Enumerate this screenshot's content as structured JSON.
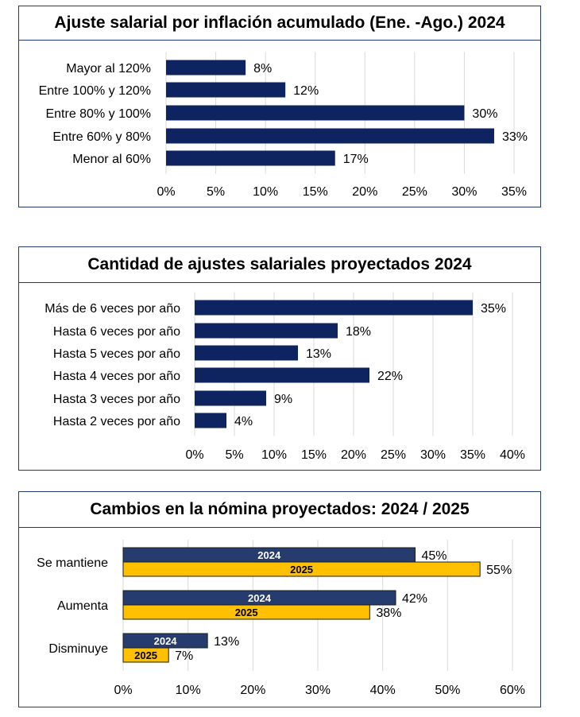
{
  "colors": {
    "navy": "#0d2461",
    "navy2": "#263c6e",
    "gold": "#ffc000",
    "grid": "#d9d9d9",
    "border": "#1f3a6b"
  },
  "chart_data": [
    {
      "type": "bar",
      "orientation": "horizontal",
      "title": "Ajuste salarial por inflación acumulado (Ene. -Ago.) 2024",
      "categories": [
        "Mayor al 120%",
        "Entre 100% y 120%",
        "Entre 80% y 100%",
        "Entre 60% y 80%",
        "Menor al 60%"
      ],
      "values": [
        8,
        12,
        30,
        33,
        17
      ],
      "value_labels": [
        "8%",
        "12%",
        "30%",
        "33%",
        "17%"
      ],
      "xlim": [
        0,
        35
      ],
      "xticks": [
        "0%",
        "5%",
        "10%",
        "15%",
        "20%",
        "25%",
        "30%",
        "35%"
      ],
      "grid": true
    },
    {
      "type": "bar",
      "orientation": "horizontal",
      "title": "Cantidad de ajustes salariales proyectados 2024",
      "categories": [
        "Más de 6 veces por año",
        "Hasta 6 veces por año",
        "Hasta 5 veces por año",
        "Hasta 4 veces por año",
        "Hasta 3 veces por año",
        "Hasta 2 veces por año"
      ],
      "values": [
        35,
        18,
        13,
        22,
        9,
        4
      ],
      "value_labels": [
        "35%",
        "18%",
        "13%",
        "22%",
        "9%",
        "4%"
      ],
      "xlim": [
        0,
        40
      ],
      "xticks": [
        "0%",
        "5%",
        "10%",
        "15%",
        "20%",
        "25%",
        "30%",
        "35%",
        "40%"
      ],
      "grid": true
    },
    {
      "type": "bar",
      "orientation": "horizontal",
      "title": "Cambios en la nómina proyectados: 2024 / 2025",
      "categories": [
        "Se mantiene",
        "Aumenta",
        "Disminuye"
      ],
      "series": [
        {
          "name": "2024",
          "values": [
            45,
            42,
            13
          ],
          "value_labels": [
            "45%",
            "42%",
            "13%"
          ]
        },
        {
          "name": "2025",
          "values": [
            55,
            38,
            7
          ],
          "value_labels": [
            "55%",
            "38%",
            "7%"
          ]
        }
      ],
      "xlim": [
        0,
        60
      ],
      "xticks": [
        "0%",
        "10%",
        "20%",
        "30%",
        "40%",
        "50%",
        "60%"
      ],
      "grid": true
    }
  ]
}
